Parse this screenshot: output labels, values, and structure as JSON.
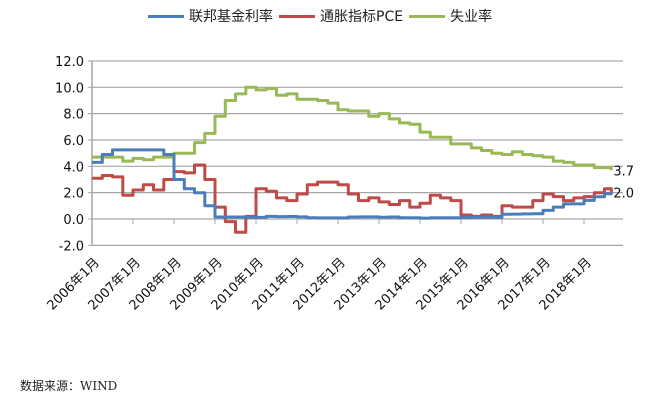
{
  "legend": [
    {
      "label": "联邦基金利率",
      "color": "#4a7ebb"
    },
    {
      "label": "通胀指标PCE",
      "color": "#be4b48"
    },
    {
      "label": "失业率",
      "color": "#98b954"
    }
  ],
  "source": "数据来源：WIND",
  "chart_data": {
    "type": "line",
    "title": "",
    "xlabel": "",
    "ylabel": "",
    "ylim": [
      -2.0,
      12.0
    ],
    "yticks": [
      "12.0",
      "10.0",
      "8.0",
      "6.0",
      "4.0",
      "2.0",
      "0.0",
      "-2.0"
    ],
    "xticks": [
      "2006年1月",
      "2007年1月",
      "2008年1月",
      "2009年1月",
      "2010年1月",
      "2011年1月",
      "2012年1月",
      "2013年1月",
      "2014年1月",
      "2015年1月",
      "2016年1月",
      "2017年1月",
      "2018年1月"
    ],
    "grid": true,
    "legend_position": "top",
    "x": [
      "2006-01",
      "2006-04",
      "2006-07",
      "2006-10",
      "2007-01",
      "2007-04",
      "2007-07",
      "2007-10",
      "2008-01",
      "2008-04",
      "2008-07",
      "2008-10",
      "2009-01",
      "2009-04",
      "2009-07",
      "2009-10",
      "2010-01",
      "2010-04",
      "2010-07",
      "2010-10",
      "2011-01",
      "2011-04",
      "2011-07",
      "2011-10",
      "2012-01",
      "2012-04",
      "2012-07",
      "2012-10",
      "2013-01",
      "2013-04",
      "2013-07",
      "2013-10",
      "2014-01",
      "2014-04",
      "2014-07",
      "2014-10",
      "2015-01",
      "2015-04",
      "2015-07",
      "2015-10",
      "2016-01",
      "2016-04",
      "2016-07",
      "2016-10",
      "2017-01",
      "2017-04",
      "2017-07",
      "2017-10",
      "2018-01",
      "2018-04",
      "2018-07",
      "2018-09"
    ],
    "series": [
      {
        "name": "联邦基金利率",
        "color": "#4a7ebb",
        "values": [
          4.3,
          4.9,
          5.25,
          5.25,
          5.25,
          5.25,
          5.25,
          4.9,
          3.0,
          2.3,
          2.0,
          1.0,
          0.15,
          0.15,
          0.15,
          0.12,
          0.12,
          0.2,
          0.18,
          0.19,
          0.16,
          0.1,
          0.08,
          0.08,
          0.08,
          0.15,
          0.16,
          0.16,
          0.14,
          0.15,
          0.09,
          0.09,
          0.07,
          0.09,
          0.09,
          0.09,
          0.11,
          0.12,
          0.13,
          0.12,
          0.36,
          0.37,
          0.39,
          0.4,
          0.65,
          0.9,
          1.15,
          1.15,
          1.41,
          1.69,
          1.91,
          2.0
        ]
      },
      {
        "name": "通胀指标PCE",
        "color": "#be4b48",
        "values": [
          3.1,
          3.3,
          3.2,
          1.8,
          2.2,
          2.6,
          2.2,
          3.0,
          3.6,
          3.5,
          4.1,
          3.0,
          0.9,
          -0.2,
          -1.0,
          0.2,
          2.3,
          2.1,
          1.6,
          1.4,
          1.9,
          2.6,
          2.8,
          2.8,
          2.6,
          1.9,
          1.4,
          1.6,
          1.3,
          1.1,
          1.4,
          0.9,
          1.2,
          1.8,
          1.6,
          1.4,
          0.3,
          0.2,
          0.3,
          0.2,
          1.0,
          0.9,
          0.9,
          1.4,
          1.9,
          1.7,
          1.4,
          1.6,
          1.7,
          2.0,
          2.3,
          2.0
        ]
      },
      {
        "name": "失业率",
        "color": "#98b954",
        "values": [
          4.7,
          4.7,
          4.7,
          4.4,
          4.6,
          4.5,
          4.7,
          4.7,
          5.0,
          5.0,
          5.8,
          6.5,
          7.8,
          9.0,
          9.5,
          10.0,
          9.8,
          9.9,
          9.4,
          9.5,
          9.1,
          9.1,
          9.0,
          8.8,
          8.3,
          8.2,
          8.2,
          7.8,
          8.0,
          7.6,
          7.3,
          7.2,
          6.6,
          6.2,
          6.2,
          5.7,
          5.7,
          5.4,
          5.2,
          5.0,
          4.9,
          5.1,
          4.9,
          4.8,
          4.7,
          4.4,
          4.3,
          4.1,
          4.1,
          3.9,
          3.9,
          3.7
        ]
      }
    ],
    "end_labels": [
      {
        "series": "失业率",
        "text": "3.7"
      },
      {
        "series": "联邦基金利率",
        "text": "2.0"
      }
    ]
  }
}
